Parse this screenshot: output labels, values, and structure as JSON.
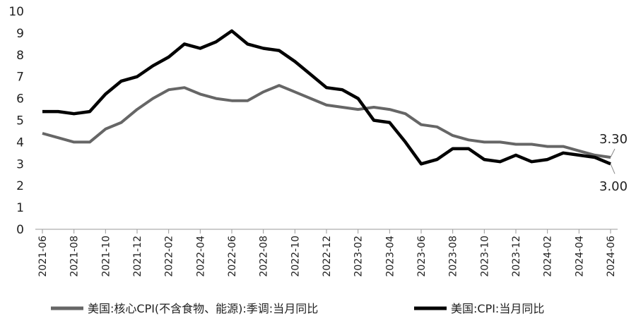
{
  "chart_data": {
    "type": "line",
    "ylim": [
      0,
      10
    ],
    "yticks": [
      0,
      1,
      2,
      3,
      4,
      5,
      6,
      7,
      8,
      9,
      10
    ],
    "grid": false,
    "legend_position": "bottom",
    "x": [
      "2021-06",
      "2021-07",
      "2021-08",
      "2021-09",
      "2021-10",
      "2021-11",
      "2021-12",
      "2022-01",
      "2022-02",
      "2022-03",
      "2022-04",
      "2022-05",
      "2022-06",
      "2022-07",
      "2022-08",
      "2022-09",
      "2022-10",
      "2022-11",
      "2022-12",
      "2023-01",
      "2023-02",
      "2023-03",
      "2023-04",
      "2023-05",
      "2023-06",
      "2023-07",
      "2023-08",
      "2023-09",
      "2023-10",
      "2023-11",
      "2023-12",
      "2024-01",
      "2024-02",
      "2024-03",
      "2024-04",
      "2024-05",
      "2024-06"
    ],
    "xtick_labels": [
      "2021-06",
      "2021-08",
      "2021-10",
      "2021-12",
      "2022-02",
      "2022-04",
      "2022-06",
      "2022-08",
      "2022-10",
      "2022-12",
      "2023-02",
      "2023-04",
      "2023-06",
      "2023-08",
      "2023-10",
      "2023-12",
      "2024-02",
      "2024-04",
      "2024-06"
    ],
    "series": [
      {
        "name": "美国:核心CPI(不含食物、能源):季调:当月同比",
        "color": "#666666",
        "values": [
          4.4,
          4.2,
          4.0,
          4.0,
          4.6,
          4.9,
          5.5,
          6.0,
          6.4,
          6.5,
          6.2,
          6.0,
          5.9,
          5.9,
          6.3,
          6.6,
          6.3,
          6.0,
          5.7,
          5.6,
          5.5,
          5.6,
          5.5,
          5.3,
          4.8,
          4.7,
          4.3,
          4.1,
          4.0,
          4.0,
          3.9,
          3.9,
          3.8,
          3.8,
          3.6,
          3.4,
          3.3
        ],
        "end_label": "3.30"
      },
      {
        "name": "美国:CPI:当月同比",
        "color": "#000000",
        "values": [
          5.4,
          5.4,
          5.3,
          5.4,
          6.2,
          6.8,
          7.0,
          7.5,
          7.9,
          8.5,
          8.3,
          8.6,
          9.1,
          8.5,
          8.3,
          8.2,
          7.7,
          7.1,
          6.5,
          6.4,
          6.0,
          5.0,
          4.9,
          4.0,
          3.0,
          3.2,
          3.7,
          3.7,
          3.2,
          3.1,
          3.4,
          3.1,
          3.2,
          3.5,
          3.4,
          3.3,
          3.0
        ],
        "end_label": "3.00"
      }
    ]
  }
}
